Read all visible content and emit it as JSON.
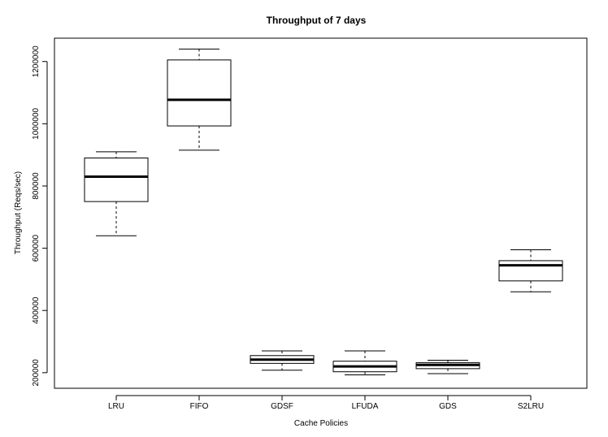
{
  "chart_data": {
    "type": "boxplot",
    "title": "Throughput of 7 days",
    "xlabel": "Cache Policies",
    "ylabel": "Throughput (Reqs/sec)",
    "categories": [
      "LRU",
      "FIFO",
      "GDSF",
      "LFUDA",
      "GDS",
      "S2LRU"
    ],
    "yticks": [
      "200000",
      "400000",
      "600000",
      "800000",
      "1000000",
      "1200000"
    ],
    "ylim": [
      150000,
      1275000
    ],
    "grid": false,
    "legend": "none",
    "boxes": [
      {
        "label": "LRU",
        "whisker_low": 640000,
        "q1": 750000,
        "median": 830000,
        "q3": 890000,
        "whisker_high": 910000
      },
      {
        "label": "FIFO",
        "whisker_low": 915000,
        "q1": 993000,
        "median": 1077000,
        "q3": 1205000,
        "whisker_high": 1240000
      },
      {
        "label": "GDSF",
        "whisker_low": 208000,
        "q1": 230000,
        "median": 242000,
        "q3": 255000,
        "whisker_high": 270000
      },
      {
        "label": "LFUDA",
        "whisker_low": 193000,
        "q1": 203000,
        "median": 220000,
        "q3": 237000,
        "whisker_high": 270000
      },
      {
        "label": "GDS",
        "whisker_low": 197000,
        "q1": 213000,
        "median": 225000,
        "q3": 232000,
        "whisker_high": 240000
      },
      {
        "label": "S2LRU",
        "whisker_low": 460000,
        "q1": 495000,
        "median": 545000,
        "q3": 560000,
        "whisker_high": 595000
      }
    ]
  }
}
